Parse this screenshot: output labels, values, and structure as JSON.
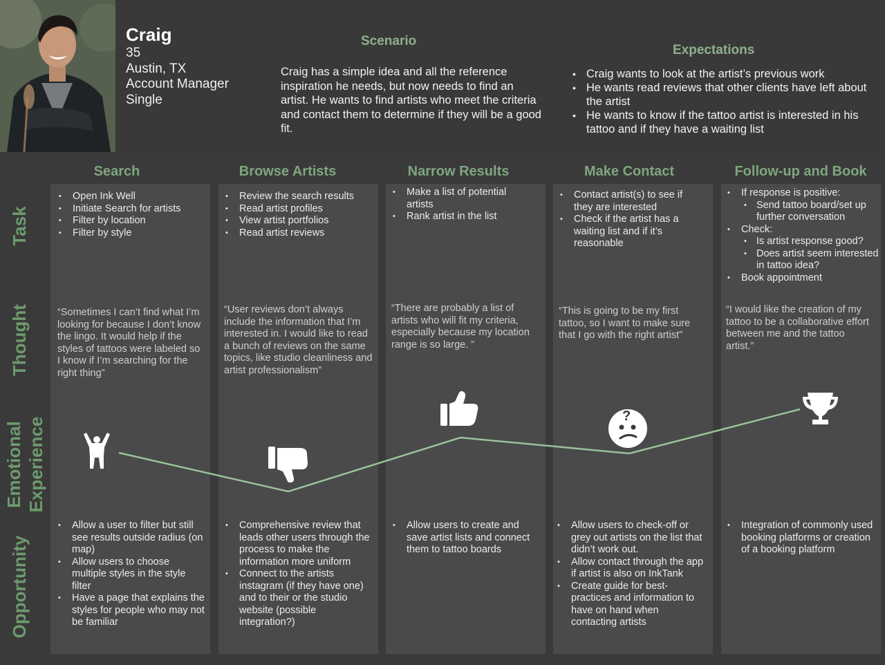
{
  "persona": {
    "name": "Craig",
    "age": "35",
    "location": "Austin, TX",
    "job": "Account Manager",
    "status": "Single"
  },
  "scenario": {
    "title": "Scenario",
    "text": "Craig has a simple idea and all the reference inspiration he needs, but now needs to find an artist. He wants to find artists who meet the criteria and contact them to determine if they will be a good fit."
  },
  "expectations": {
    "title": "Expectations",
    "items": [
      "Craig wants to look at the artist’s previous work",
      "He wants read reviews that other clients have left about the artist",
      "He wants to know if the tattoo artist is interested in his tattoo and if they have a waiting list"
    ]
  },
  "row_labels": {
    "task": "Task",
    "thought": "Thought",
    "emotional_1": "Emotional",
    "emotional_2": "Experience",
    "opportunity": "Opportunity"
  },
  "stages": [
    {
      "title": "Search",
      "tasks": [
        "Open Ink Well",
        "Initiate Search for artists",
        "Filter by location",
        "Filter by style"
      ],
      "thought": "“Sometimes I can’t find what I’m looking for because I don’t know the lingo. It would help if the styles of tattoos were labeled so I know if I’m searching for the right thing”",
      "emotion_icon": "person-cheering-icon",
      "opportunities": [
        "Allow a user to filter but still see results outside radius (on map)",
        "Allow users to choose multiple styles in the style filter",
        "Have a page that explains the styles for people who may not be familiar"
      ]
    },
    {
      "title": "Browse Artists",
      "tasks": [
        "Review the search results",
        "Read artist profiles",
        "View artist portfolios",
        "Read artist reviews"
      ],
      "thought": "“User reviews don’t always include the information that I’m interested in. I would like to read a bunch of reviews on the same topics, like studio cleanliness and  artist professionalism”",
      "emotion_icon": "thumbs-down-icon",
      "opportunities": [
        "Comprehensive review that leads other users through the process to make the information more uniform",
        "Connect to the artists instagram (if they have one) and to their or the studio website (possible integration?)"
      ]
    },
    {
      "title": "Narrow Results",
      "tasks": [
        "Make a list of potential artists",
        "Rank artist in the list"
      ],
      "thought": "“There are probably a list of artists who will fit my criteria, especially because my location range is so large. ”",
      "emotion_icon": "thumbs-up-icon",
      "opportunities": [
        "Allow users to create and save artist lists and connect them to tattoo boards"
      ]
    },
    {
      "title": "Make Contact",
      "tasks": [
        "Contact artist(s) to see if they are interested",
        "Check if the artist has a waiting list and if it’s reasonable"
      ],
      "thought": "“This is going to be my first tattoo, so I want to make sure that I go with the right artist”",
      "emotion_icon": "confused-face-icon",
      "opportunities": [
        "Allow users to check-off or grey out artists on the list that didn’t work out.",
        "Allow contact through the app if artist is also on InkTank",
        "Create guide for best-practices and information to have on hand when contacting artists"
      ]
    },
    {
      "title": "Follow-up and Book",
      "tasks_nested": [
        {
          "text": "If response is positive:",
          "level": 0
        },
        {
          "text": "Send tattoo board/set up further conversation",
          "level": 1
        },
        {
          "text": "Check:",
          "level": 0
        },
        {
          "text": "Is artist response good?",
          "level": 1
        },
        {
          "text": "Does artist seem interested in tattoo idea?",
          "level": 1
        },
        {
          "text": "Book appointment",
          "level": 0
        }
      ],
      "thought": "“I would like the creation of my tattoo to be a collaborative effort between me and the tattoo artist.”",
      "emotion_icon": "trophy-icon",
      "opportunities": [
        "Integration of commonly used booking platforms or creation of a booking platform"
      ]
    }
  ],
  "colors": {
    "accent_green": "#8fb08e",
    "label_green": "#6e9a6d",
    "line_green": "#9cc29b",
    "panel": "#4a4a4a",
    "background": "#3a3a3a"
  }
}
